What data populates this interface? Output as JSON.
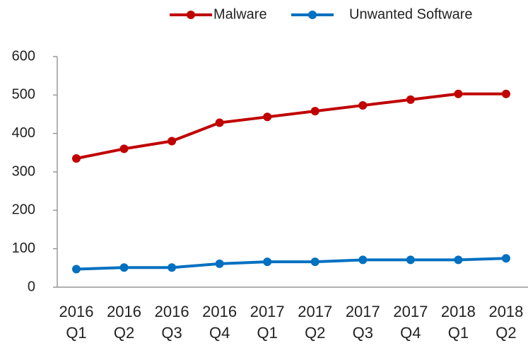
{
  "chart_data": {
    "type": "line",
    "categories": [
      "2016 Q1",
      "2016 Q2",
      "2016 Q3",
      "2016 Q4",
      "2017 Q1",
      "2017 Q2",
      "2017 Q3",
      "2017 Q4",
      "2018 Q1",
      "2018 Q2"
    ],
    "series": [
      {
        "name": "Malware",
        "color": "#c00000",
        "values": [
          335,
          360,
          380,
          428,
          443,
          458,
          473,
          488,
          503,
          503
        ]
      },
      {
        "name": "Unwanted Software",
        "color": "#0070c0",
        "values": [
          47,
          51,
          51,
          61,
          66,
          66,
          71,
          71,
          71,
          75
        ]
      }
    ],
    "ylim": [
      0,
      600
    ],
    "yticks": [
      0,
      100,
      200,
      300,
      400,
      500,
      600
    ],
    "grid": false,
    "legend": "top"
  }
}
